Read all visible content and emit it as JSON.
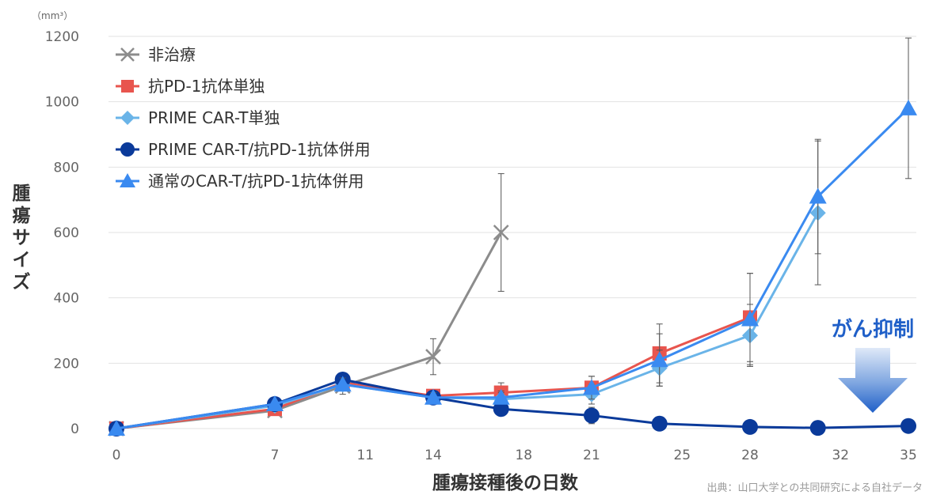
{
  "chart_data": {
    "type": "line",
    "title": "",
    "xlabel": "腫瘍接種後の日数",
    "ylabel": "腫瘍サイズ",
    "y_unit": "（mm³）",
    "xlim": [
      0,
      35
    ],
    "ylim": [
      0,
      1200
    ],
    "x_ticks": [
      0,
      7,
      11,
      14,
      18,
      21,
      25,
      28,
      32,
      35
    ],
    "y_ticks": [
      0,
      200,
      400,
      600,
      800,
      1000,
      1200
    ],
    "grid": "horizontal",
    "legend_position": "top-left",
    "series": [
      {
        "name": "非治療",
        "color": "#8c8c8c",
        "marker": "x",
        "x": [
          0,
          7,
          10,
          14,
          17
        ],
        "y": [
          0,
          55,
          130,
          220,
          600
        ],
        "err": [
          0,
          10,
          25,
          55,
          180
        ]
      },
      {
        "name": "抗PD-1抗体単独",
        "color": "#e8554e",
        "marker": "square",
        "x": [
          0,
          7,
          10,
          14,
          17,
          21,
          24,
          28
        ],
        "y": [
          0,
          60,
          140,
          100,
          110,
          125,
          230,
          340
        ],
        "err": [
          0,
          10,
          20,
          15,
          30,
          35,
          90,
          135
        ]
      },
      {
        "name": "PRIME CAR-T単独",
        "color": "#6ab4e8",
        "marker": "diamond",
        "x": [
          0,
          7,
          10,
          14,
          17,
          21,
          24,
          28,
          31
        ],
        "y": [
          0,
          70,
          135,
          95,
          90,
          105,
          185,
          285,
          660
        ],
        "err": [
          0,
          10,
          20,
          15,
          20,
          30,
          55,
          95,
          220
        ]
      },
      {
        "name": "PRIME CAR-T/抗PD-1抗体併用",
        "color": "#0a3a9a",
        "marker": "circle",
        "x": [
          0,
          7,
          10,
          14,
          17,
          21,
          24,
          28,
          31,
          35
        ],
        "y": [
          0,
          75,
          150,
          95,
          60,
          40,
          15,
          5,
          2,
          8
        ],
        "err": [
          0,
          10,
          15,
          15,
          10,
          25,
          10,
          5,
          3,
          5
        ]
      },
      {
        "name": "通常のCAR-T/抗PD-1抗体併用",
        "color": "#3a8af0",
        "marker": "triangle",
        "x": [
          0,
          7,
          10,
          14,
          17,
          21,
          24,
          28,
          31,
          35
        ],
        "y": [
          0,
          75,
          135,
          95,
          95,
          125,
          210,
          335,
          710,
          980
        ],
        "err": [
          0,
          10,
          20,
          15,
          20,
          35,
          80,
          140,
          175,
          215
        ]
      }
    ],
    "annotation": {
      "text": "がん抑制",
      "arrow": "down",
      "color": "#1f5fc8"
    },
    "source": "出典：山口大学との共同研究による自社データ"
  }
}
